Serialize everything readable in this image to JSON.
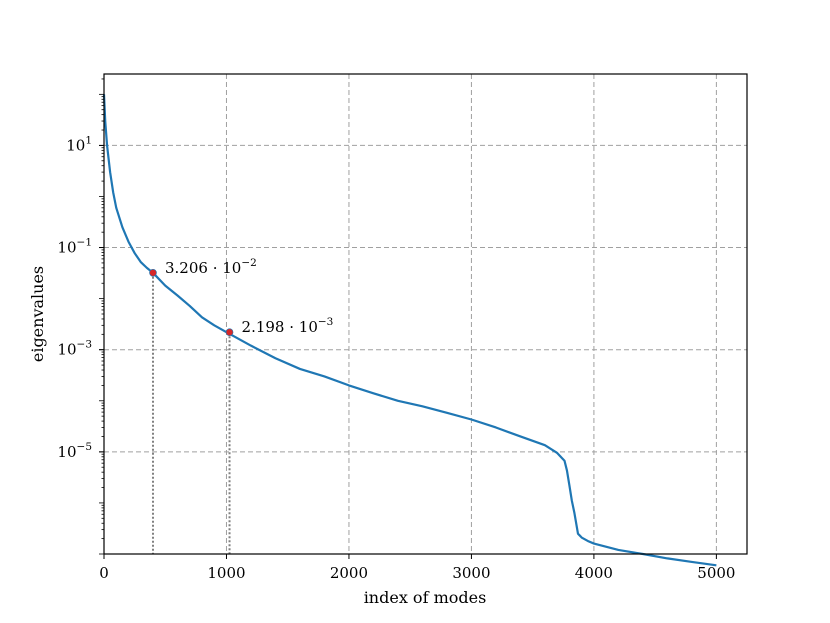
{
  "chart_data": {
    "type": "line",
    "xlabel": "index of modes",
    "ylabel": "eigenvalues",
    "xlim": [
      0,
      5250
    ],
    "ylim": [
      1e-07,
      250
    ],
    "yscale": "log",
    "grid": true,
    "x_ticks": [
      {
        "value": 0,
        "label": "0"
      },
      {
        "value": 1000,
        "label": "1000"
      },
      {
        "value": 2000,
        "label": "2000"
      },
      {
        "value": 3000,
        "label": "3000"
      },
      {
        "value": 4000,
        "label": "4000"
      },
      {
        "value": 5000,
        "label": "5000"
      }
    ],
    "y_ticks": [
      {
        "value": 10,
        "base": "10",
        "exp": "1"
      },
      {
        "value": 0.1,
        "base": "10",
        "exp": "−1"
      },
      {
        "value": 0.001,
        "base": "10",
        "exp": "−3"
      },
      {
        "value": 1e-05,
        "base": "10",
        "exp": "−5"
      }
    ],
    "series": [
      {
        "color": "#1f77b4",
        "x": [
          0,
          10,
          25,
          50,
          75,
          100,
          150,
          200,
          250,
          300,
          350,
          400,
          500,
          600,
          700,
          800,
          900,
          1000,
          1200,
          1400,
          1600,
          1800,
          2000,
          2200,
          2400,
          2600,
          2800,
          3000,
          3200,
          3400,
          3600,
          3700,
          3760,
          3780,
          3800,
          3820,
          3840,
          3870,
          3900,
          3950,
          4000,
          4200,
          4400,
          4600,
          4800,
          5000
        ],
        "y": [
          100,
          30,
          10,
          3,
          1.2,
          0.6,
          0.25,
          0.13,
          0.078,
          0.052,
          0.04,
          0.032,
          0.018,
          0.0115,
          0.0072,
          0.0043,
          0.003,
          0.0022,
          0.0012,
          0.00068,
          0.00042,
          0.0003,
          0.0002,
          0.00014,
          0.0001,
          7.8e-05,
          5.8e-05,
          4.3e-05,
          3e-05,
          2e-05,
          1.35e-05,
          9.5e-06,
          6.7e-06,
          4.3e-06,
          2.2e-06,
          1.1e-06,
          6.5e-07,
          2.5e-07,
          2.1e-07,
          1.8e-07,
          1.6e-07,
          1.2e-07,
          1e-07,
          8.2e-08,
          7e-08,
          6e-08
        ]
      }
    ],
    "markers": [
      {
        "x": 400,
        "y": 0.03206,
        "label_base": "3.206 · 10",
        "label_exp": "−2",
        "color": "#d62728"
      },
      {
        "x": 1025,
        "y": 0.002198,
        "label_base": "2.198 · 10",
        "label_exp": "−3",
        "color": "#d62728"
      }
    ]
  }
}
